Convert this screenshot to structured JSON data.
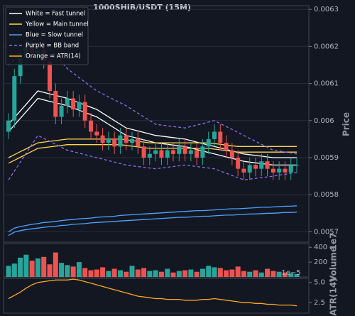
{
  "chart_data": [
    {
      "type": "candlestick",
      "title": "1000SHIB/USDT (15M)",
      "ylabel": "Price",
      "up_color": "#26a69a",
      "down_color": "#ef5350",
      "grid": true,
      "legend": "upper left",
      "open": [
        0.00597,
        0.006,
        0.00612,
        0.00617,
        0.0062,
        0.00618,
        0.00619,
        0.00616,
        0.00608,
        0.00601,
        0.00604,
        0.00606,
        0.00603,
        0.00605,
        0.006,
        0.00597,
        0.00596,
        0.00594,
        0.00595,
        0.00593,
        0.00596,
        0.00594,
        0.00595,
        0.00593,
        0.0059,
        0.00591,
        0.00592,
        0.0059,
        0.00592,
        0.00591,
        0.00593,
        0.00591,
        0.00592,
        0.0059,
        0.00593,
        0.00595,
        0.00597,
        0.00594,
        0.00592,
        0.0059,
        0.00587,
        0.00586,
        0.00588,
        0.00587,
        0.00589,
        0.00587,
        0.00586,
        0.00587,
        0.00586,
        0.00588
      ],
      "high": [
        0.00602,
        0.00614,
        0.00619,
        0.00622,
        0.00622,
        0.00621,
        0.00621,
        0.00618,
        0.0061,
        0.00606,
        0.00608,
        0.00608,
        0.00607,
        0.00607,
        0.00602,
        0.00599,
        0.00598,
        0.00597,
        0.00597,
        0.00598,
        0.00598,
        0.00597,
        0.00597,
        0.00595,
        0.00593,
        0.00594,
        0.00594,
        0.00594,
        0.00594,
        0.00595,
        0.00595,
        0.00594,
        0.00594,
        0.00595,
        0.00597,
        0.00599,
        0.00599,
        0.00596,
        0.00594,
        0.00592,
        0.00589,
        0.0059,
        0.0059,
        0.00591,
        0.00591,
        0.00589,
        0.00589,
        0.00589,
        0.0059,
        0.0059
      ],
      "low": [
        0.00595,
        0.00598,
        0.0061,
        0.00615,
        0.00616,
        0.00616,
        0.00614,
        0.00606,
        0.00599,
        0.00599,
        0.00602,
        0.00601,
        0.00601,
        0.00598,
        0.00595,
        0.00594,
        0.00592,
        0.00592,
        0.00591,
        0.00591,
        0.00592,
        0.00592,
        0.00591,
        0.00588,
        0.00588,
        0.00589,
        0.00588,
        0.00588,
        0.00589,
        0.00589,
        0.00589,
        0.00589,
        0.00588,
        0.00588,
        0.00591,
        0.00593,
        0.00592,
        0.0059,
        0.00588,
        0.00585,
        0.00584,
        0.00584,
        0.00585,
        0.00585,
        0.00585,
        0.00584,
        0.00584,
        0.00584,
        0.00584,
        0.00586
      ],
      "close": [
        0.006,
        0.00612,
        0.00617,
        0.0062,
        0.00618,
        0.00619,
        0.00616,
        0.00608,
        0.00601,
        0.00604,
        0.00606,
        0.00603,
        0.00605,
        0.006,
        0.00597,
        0.00596,
        0.00594,
        0.00595,
        0.00593,
        0.00596,
        0.00594,
        0.00595,
        0.00593,
        0.0059,
        0.00591,
        0.00592,
        0.0059,
        0.00592,
        0.00591,
        0.00593,
        0.00591,
        0.00592,
        0.0059,
        0.00593,
        0.00595,
        0.00597,
        0.00594,
        0.00592,
        0.0059,
        0.00587,
        0.00586,
        0.00588,
        0.00587,
        0.00589,
        0.00587,
        0.00586,
        0.00587,
        0.00586,
        0.00588,
        0.00588
      ],
      "series": [
        {
          "name": "White = Fast tunnel",
          "color": "#ffffff",
          "upper": [
            0.00599,
            0.006008,
            0.006026,
            0.006044,
            0.006062,
            0.00608,
            0.006076,
            0.006072,
            0.006068,
            0.006064,
            0.00606,
            0.006054,
            0.006048,
            0.006042,
            0.006036,
            0.00603,
            0.00602,
            0.00601,
            0.006,
            0.00599,
            0.00598,
            0.005976,
            0.005972,
            0.005968,
            0.005964,
            0.00596,
            0.005958,
            0.005956,
            0.005954,
            0.005952,
            0.00595,
            0.005946,
            0.005942,
            0.005938,
            0.005934,
            0.00593,
            0.005926,
            0.005922,
            0.005918,
            0.005914,
            0.00591,
            0.005908,
            0.005906,
            0.005904,
            0.005902,
            0.0059,
            0.0059,
            0.0059,
            0.0059,
            0.0059
          ],
          "lower": [
            0.00597,
            0.005988,
            0.006006,
            0.006024,
            0.006042,
            0.00606,
            0.006056,
            0.006052,
            0.006048,
            0.006044,
            0.00604,
            0.006034,
            0.006028,
            0.006022,
            0.006016,
            0.00601,
            0.006,
            0.00599,
            0.00598,
            0.00597,
            0.00596,
            0.005956,
            0.005952,
            0.005948,
            0.005944,
            0.00594,
            0.005938,
            0.005936,
            0.005934,
            0.005932,
            0.00593,
            0.005926,
            0.005922,
            0.005918,
            0.005914,
            0.00591,
            0.005906,
            0.005902,
            0.005898,
            0.005894,
            0.00589,
            0.005888,
            0.005886,
            0.005884,
            0.005882,
            0.00588,
            0.00588,
            0.00588,
            0.00588,
            0.00588
          ]
        },
        {
          "name": "Yellow = Main tunnel",
          "color": "#ffd54f",
          "upper": [
            0.0059,
            0.005908,
            0.005916,
            0.005924,
            0.005932,
            0.00594,
            0.005942,
            0.005944,
            0.005946,
            0.005948,
            0.00595,
            0.00595,
            0.00595,
            0.00595,
            0.00595,
            0.00595,
            0.00595,
            0.00595,
            0.00595,
            0.00595,
            0.005948,
            0.005946,
            0.005944,
            0.005942,
            0.00594,
            0.00594,
            0.00594,
            0.00594,
            0.00594,
            0.00594,
            0.00594,
            0.00594,
            0.00594,
            0.00594,
            0.00594,
            0.005938,
            0.005936,
            0.005934,
            0.005932,
            0.00593,
            0.00593,
            0.00593,
            0.00593,
            0.00593,
            0.00593,
            0.00593,
            0.00593,
            0.00593,
            0.00593,
            0.00593
          ],
          "lower": [
            0.005885,
            0.005893,
            0.005901,
            0.005909,
            0.005917,
            0.005925,
            0.005927,
            0.005929,
            0.005931,
            0.005933,
            0.005935,
            0.005935,
            0.005935,
            0.005935,
            0.005935,
            0.005935,
            0.005935,
            0.005935,
            0.005935,
            0.005935,
            0.005933,
            0.005931,
            0.005929,
            0.005927,
            0.005925,
            0.005925,
            0.005925,
            0.005925,
            0.005925,
            0.005925,
            0.005925,
            0.005925,
            0.005925,
            0.005925,
            0.005925,
            0.005923,
            0.005921,
            0.005919,
            0.005917,
            0.005915,
            0.005915,
            0.005915,
            0.005915,
            0.005915,
            0.005915,
            0.005915,
            0.005915,
            0.005915,
            0.005915,
            0.005915
          ]
        },
        {
          "name": "Blue = Slow tunnel",
          "color": "#4da3ff",
          "upper": [
            0.0057,
            0.00571,
            0.005714,
            0.005717,
            0.00572,
            0.005722,
            0.005725,
            0.005726,
            0.005728,
            0.00573,
            0.005732,
            0.005733,
            0.005735,
            0.005736,
            0.005737,
            0.005739,
            0.00574,
            0.005741,
            0.005742,
            0.005744,
            0.005745,
            0.005746,
            0.005747,
            0.005748,
            0.005749,
            0.00575,
            0.005751,
            0.005752,
            0.005753,
            0.005754,
            0.005755,
            0.005756,
            0.005757,
            0.005757,
            0.005758,
            0.005759,
            0.00576,
            0.005761,
            0.005762,
            0.005762,
            0.005763,
            0.005764,
            0.005765,
            0.005766,
            0.005766,
            0.005767,
            0.005768,
            0.005769,
            0.005769,
            0.00577
          ],
          "lower": [
            0.00569,
            0.005699,
            0.005703,
            0.005706,
            0.005708,
            0.00571,
            0.005712,
            0.005714,
            0.005715,
            0.005717,
            0.005718,
            0.00572,
            0.005721,
            0.005722,
            0.005724,
            0.005725,
            0.005726,
            0.005727,
            0.005728,
            0.005729,
            0.00573,
            0.005731,
            0.005732,
            0.005733,
            0.005734,
            0.005735,
            0.005736,
            0.005737,
            0.005738,
            0.005739,
            0.005739,
            0.00574,
            0.005741,
            0.005742,
            0.005742,
            0.005743,
            0.005744,
            0.005745,
            0.005745,
            0.005746,
            0.005747,
            0.005748,
            0.005748,
            0.005749,
            0.00575,
            0.00575,
            0.005751,
            0.005752,
            0.005752,
            0.005753
          ]
        },
        {
          "name": "Purple = BB band",
          "color": "#8e6cf0",
          "dash": true,
          "upper": [
            0.00615,
            0.006166,
            0.006182,
            0.006198,
            0.006214,
            0.00623,
            0.006212,
            0.006194,
            0.006176,
            0.006158,
            0.00614,
            0.006128,
            0.006116,
            0.006104,
            0.006092,
            0.00608,
            0.006072,
            0.006064,
            0.006056,
            0.006048,
            0.00604,
            0.00603,
            0.00602,
            0.00601,
            0.006,
            0.00599,
            0.005988,
            0.005986,
            0.005984,
            0.005982,
            0.00598,
            0.005984,
            0.005988,
            0.005992,
            0.005996,
            0.006,
            0.005992,
            0.005984,
            0.005976,
            0.005968,
            0.00596,
            0.005952,
            0.005944,
            0.005936,
            0.005928,
            0.00592,
            0.005918,
            0.005915,
            0.005913,
            0.00591
          ],
          "lower": [
            0.00584,
            0.005864,
            0.005888,
            0.005912,
            0.005936,
            0.00596,
            0.005952,
            0.005944,
            0.005936,
            0.005928,
            0.00592,
            0.005916,
            0.005912,
            0.005908,
            0.005904,
            0.0059,
            0.005896,
            0.005892,
            0.005888,
            0.005884,
            0.00588,
            0.005878,
            0.005876,
            0.005874,
            0.005872,
            0.00587,
            0.005872,
            0.005874,
            0.005876,
            0.005878,
            0.00588,
            0.005878,
            0.005876,
            0.005874,
            0.005872,
            0.00587,
            0.005864,
            0.005858,
            0.005852,
            0.005846,
            0.00584,
            0.005842,
            0.005844,
            0.005846,
            0.005848,
            0.00585,
            0.005853,
            0.005855,
            0.005858,
            0.00586
          ]
        }
      ],
      "ylim": [
        0.005672,
        0.00631
      ],
      "yticks": [
        0.0057,
        0.0058,
        0.0059,
        0.006,
        0.0061,
        0.0062,
        0.0063
      ]
    },
    {
      "type": "bar",
      "ylabel": "Volume",
      "offset_text": "1e7",
      "values": [
        150,
        180,
        260,
        300,
        220,
        250,
        270,
        170,
        330,
        190,
        160,
        140,
        200,
        120,
        90,
        100,
        130,
        80,
        110,
        90,
        70,
        150,
        100,
        120,
        80,
        90,
        70,
        110,
        60,
        80,
        90,
        100,
        70,
        110,
        150,
        130,
        120,
        90,
        100,
        140,
        80,
        70,
        90,
        60,
        110,
        80,
        70,
        60,
        50,
        40
      ],
      "ylim": [
        0,
        450
      ],
      "yticks": [
        200,
        400
      ]
    },
    {
      "type": "line",
      "ylabel": "ATR(14)",
      "offset_text": "1e−5",
      "series": [
        {
          "name": "Orange = ATR(14)",
          "color": "#ffa726",
          "values": [
            3.0,
            3.4,
            3.8,
            4.3,
            4.7,
            5.0,
            5.1,
            5.2,
            5.3,
            5.3,
            5.3,
            5.4,
            5.3,
            5.1,
            4.9,
            4.7,
            4.5,
            4.3,
            4.1,
            3.9,
            3.7,
            3.5,
            3.3,
            3.2,
            3.1,
            3.0,
            3.0,
            2.9,
            2.9,
            2.9,
            2.8,
            2.8,
            2.8,
            2.9,
            2.9,
            3.0,
            2.9,
            2.8,
            2.7,
            2.6,
            2.5,
            2.5,
            2.4,
            2.4,
            2.3,
            2.3,
            2.2,
            2.2,
            2.2,
            2.1
          ]
        }
      ],
      "ylim": [
        1.2,
        5.5
      ],
      "yticks": [
        2.5,
        {
          "value": 5,
          "label": "5.0"
        }
      ]
    }
  ]
}
